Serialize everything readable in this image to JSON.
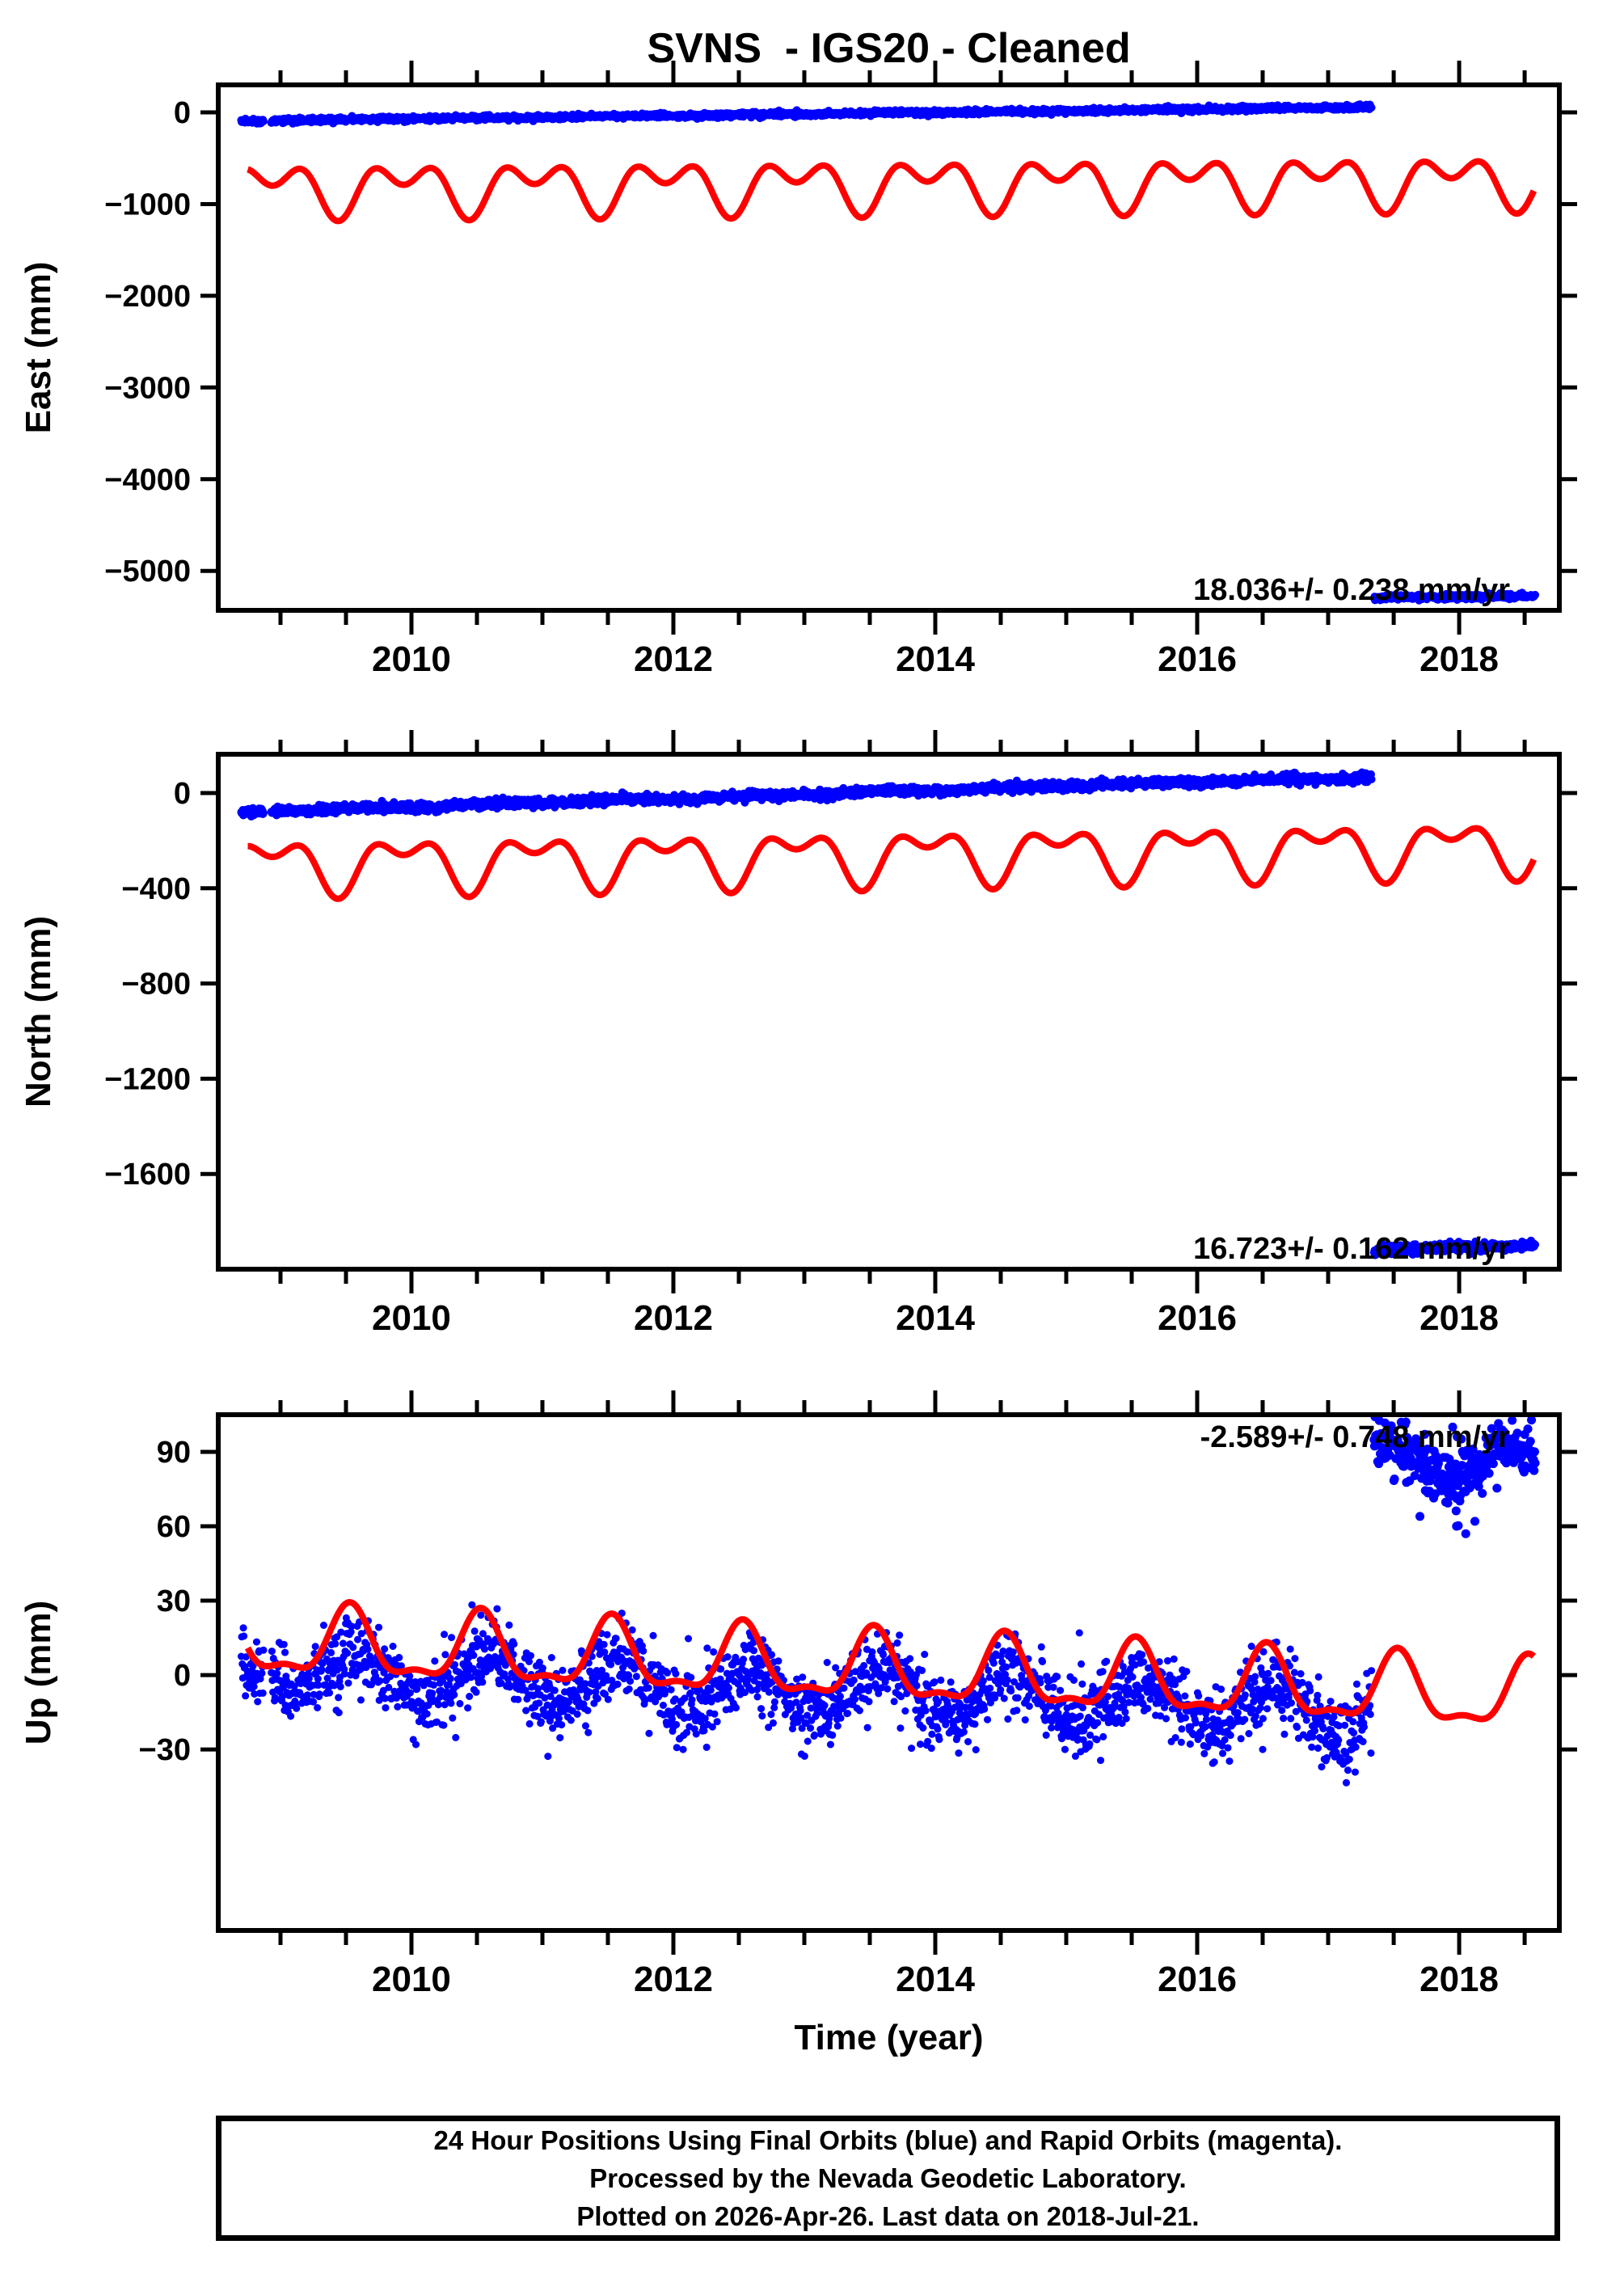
{
  "title": "SVNS  - IGS20 - Cleaned",
  "xlabel": "Time (year)",
  "colors": {
    "final_orbits": "#0000ff",
    "rapid_orbits": "#ff00ff",
    "model": "#ff0000",
    "frame": "#000000"
  },
  "velocity_mm_per_yr": {
    "east": "18.036+/- 0.238",
    "north": "16.723+/- 0.162",
    "up": "-2.589+/- 0.748"
  },
  "caption": {
    "line1": "24 Hour Positions Using Final Orbits (blue) and Rapid Orbits (magenta).",
    "line2": "Processed by the Nevada Geodetic Laboratory.",
    "line3": "Plotted on 2026-Apr-26. Last data on 2018-Jul-21."
  },
  "chart_data": {
    "type": "scatter",
    "x_range": [
      2008.525,
      2018.765
    ],
    "x_major_ticks": [
      2010,
      2012,
      2014,
      2016,
      2018
    ],
    "x_tick_labels": [
      "2010",
      "2012",
      "2014",
      "2016",
      "2018"
    ],
    "x_minor_tick_interval": 0.5,
    "panels": [
      {
        "id": "east",
        "ylabel": "East (mm)",
        "ylim": [
          -5430,
          300
        ],
        "yticks": [
          0,
          -1000,
          -2000,
          -3000,
          -4000,
          -5000
        ],
        "ytick_labels": [
          "0",
          "−1000",
          "−2000",
          "−3000",
          "−4000",
          "−5000"
        ],
        "annotation": {
          "text": "18.036+/- 0.238 mm/yr",
          "corner": "bottom-right"
        },
        "series": [
          {
            "kind": "scatter",
            "label": "final-orbit-positions",
            "color_key": "final_orbits",
            "sigma": 13,
            "marker_px": 10,
            "seed": 11,
            "segments": [
              {
                "t0": 2008.7,
                "t1": 2008.87,
                "v0": -92,
                "v1": -90,
                "annual_amp": 0,
                "annual_phase": 2009.6
              },
              {
                "t0": 2008.93,
                "t1": 2017.33,
                "v0": -88,
                "v1": 57,
                "annual_amp": 3,
                "annual_phase": 2009.6
              }
            ]
          },
          {
            "kind": "scatter",
            "label": "final-orbit-positions-after-offset",
            "color_key": "final_orbits",
            "sigma": 13,
            "marker_px": 10,
            "seed": 12,
            "segments": [
              {
                "t0": 2017.35,
                "t1": 2018.58,
                "v0": -5292,
                "v1": -5270,
                "annual_amp": 0,
                "annual_phase": 2009.6
              }
            ]
          },
          {
            "kind": "model",
            "label": "model-fit",
            "color_key": "model",
            "t0": 2008.75,
            "t1": 2018.57,
            "mean": -777,
            "mean_epoch": 2013.6,
            "trend": 9,
            "a1": 195,
            "a2": -175,
            "phase": 2009.94
          }
        ]
      },
      {
        "id": "north",
        "ylabel": "North (mm)",
        "ylim": [
          -2000,
          163
        ],
        "yticks": [
          0,
          -400,
          -800,
          -1200,
          -1600
        ],
        "ytick_labels": [
          "0",
          "−400",
          "−800",
          "−1200",
          "−1600"
        ],
        "annotation": {
          "text": "16.723+/- 0.162 mm/yr",
          "corner": "bottom-right"
        },
        "series": [
          {
            "kind": "scatter",
            "label": "final-orbit-positions",
            "color_key": "final_orbits",
            "sigma": 9,
            "marker_px": 10,
            "seed": 21,
            "segments": [
              {
                "t0": 2008.7,
                "t1": 2008.87,
                "v0": -79,
                "v1": -78,
                "annual_amp": 0,
                "annual_phase": 2009.6
              },
              {
                "t0": 2008.93,
                "t1": 2017.33,
                "v0": -76,
                "v1": 70,
                "annual_amp": 3.5,
                "annual_phase": 2009.6
              }
            ]
          },
          {
            "kind": "scatter",
            "label": "final-orbit-positions-after-offset",
            "color_key": "final_orbits",
            "sigma": 9,
            "marker_px": 10,
            "seed": 22,
            "segments": [
              {
                "t0": 2017.35,
                "t1": 2018.58,
                "v0": -1918,
                "v1": -1899,
                "annual_amp": 0,
                "annual_phase": 2009.6
              }
            ]
          },
          {
            "kind": "model",
            "label": "model-fit",
            "color_key": "model",
            "t0": 2008.75,
            "t1": 2018.57,
            "mean": -261,
            "mean_epoch": 2013.6,
            "trend": 8,
            "a1": 90,
            "a2": -60,
            "phase": 2009.94
          }
        ]
      },
      {
        "id": "up",
        "ylabel": "Up (mm)",
        "ylim": [
          -103,
          105
        ],
        "yticks": [
          90,
          60,
          30,
          0,
          -30
        ],
        "ytick_labels": [
          "90",
          "60",
          "30",
          "0",
          "−30"
        ],
        "annotation": {
          "text": "-2.589+/- 0.748 mm/yr",
          "corner": "top-right"
        },
        "series": [
          {
            "kind": "scatter",
            "label": "final-orbit-positions",
            "color_key": "final_orbits",
            "sigma": 7.5,
            "marker_px": 9,
            "seed": 31,
            "segments": [
              {
                "t0": 2008.7,
                "t1": 2008.87,
                "v0": 3,
                "v1": 3,
                "annual_amp": 0,
                "annual_phase": 2009.6
              },
              {
                "t0": 2008.93,
                "t1": 2017.33,
                "v0": 2,
                "v1": -14,
                "annual_amp": 9,
                "annual_phase": 2009.6
              }
            ],
            "outliers": [
              [
                2016.95,
                -37
              ],
              [
                2017.05,
                -33
              ],
              [
                2016.5,
                -30
              ],
              [
                2013.2,
                -28
              ],
              [
                2015.1,
                17
              ]
            ]
          },
          {
            "kind": "scatter",
            "label": "final-orbit-positions-after-offset",
            "color_key": "final_orbits",
            "sigma": 6,
            "marker_px": 11,
            "seed": 32,
            "segments": [
              {
                "t0": 2017.35,
                "t1": 2018.58,
                "v0": 89,
                "v1": 85,
                "annual_amp": 7,
                "annual_phase": 2017.42
              }
            ],
            "outliers": [
              [
                2017.95,
                100
              ],
              [
                2017.45,
                96
              ],
              [
                2018.5,
                97
              ],
              [
                2018.05,
                57
              ],
              [
                2017.98,
                60
              ],
              [
                2018.12,
                62
              ],
              [
                2017.7,
                64
              ]
            ]
          },
          {
            "kind": "model",
            "label": "model-fit",
            "color_key": "model",
            "t0": 2008.75,
            "t1": 2018.57,
            "mean": 2,
            "mean_epoch": 2013.6,
            "trend": -2.3,
            "a1": 13,
            "a2": 5,
            "phase": 2009.53
          }
        ]
      }
    ]
  }
}
